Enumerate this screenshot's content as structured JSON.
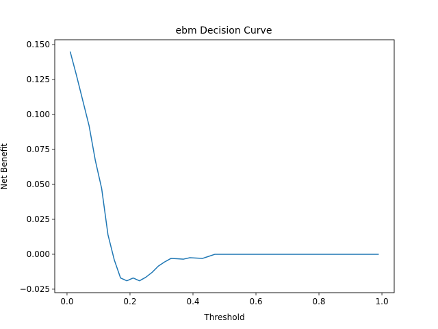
{
  "chart_data": {
    "type": "line",
    "title": "ebm Decision Curve",
    "xlabel": "Threshold",
    "ylabel": "Net Benefit",
    "xlim": [
      -0.039,
      1.039
    ],
    "ylim": [
      -0.0275,
      0.1535
    ],
    "xticks": [
      0.0,
      0.2,
      0.4,
      0.6,
      0.8,
      1.0
    ],
    "xtick_labels": [
      "0.0",
      "0.2",
      "0.4",
      "0.6",
      "0.8",
      "1.0"
    ],
    "yticks": [
      -0.025,
      0.0,
      0.025,
      0.05,
      0.075,
      0.1,
      0.125,
      0.15
    ],
    "ytick_labels": [
      "−0.025",
      "0.000",
      "0.025",
      "0.050",
      "0.075",
      "0.100",
      "0.125",
      "0.150"
    ],
    "grid": false,
    "series": [
      {
        "color": "#1f77b4",
        "x": [
          0.01,
          0.03,
          0.05,
          0.07,
          0.09,
          0.11,
          0.13,
          0.15,
          0.17,
          0.19,
          0.21,
          0.23,
          0.25,
          0.27,
          0.29,
          0.31,
          0.33,
          0.35,
          0.37,
          0.39,
          0.41,
          0.43,
          0.45,
          0.47,
          0.49,
          0.51,
          0.53,
          0.55,
          0.57,
          0.59,
          0.61,
          0.63,
          0.65,
          0.67,
          0.69,
          0.71,
          0.73,
          0.75,
          0.77,
          0.79,
          0.81,
          0.83,
          0.85,
          0.87,
          0.89,
          0.91,
          0.93,
          0.95,
          0.97,
          0.99
        ],
        "y": [
          0.145,
          0.128,
          0.11,
          0.092,
          0.067,
          0.047,
          0.014,
          -0.004,
          -0.017,
          -0.019,
          -0.017,
          -0.019,
          -0.0165,
          -0.013,
          -0.0085,
          -0.0055,
          -0.003,
          -0.0032,
          -0.0035,
          -0.0025,
          -0.0027,
          -0.003,
          -0.0015,
          0.0,
          0.0,
          0.0,
          0.0,
          0.0,
          0.0,
          0.0,
          0.0,
          0.0,
          0.0,
          0.0,
          0.0,
          0.0,
          0.0,
          0.0,
          0.0,
          0.0,
          0.0,
          0.0,
          0.0,
          0.0,
          0.0,
          0.0,
          0.0,
          0.0,
          0.0,
          0.0
        ]
      }
    ]
  }
}
